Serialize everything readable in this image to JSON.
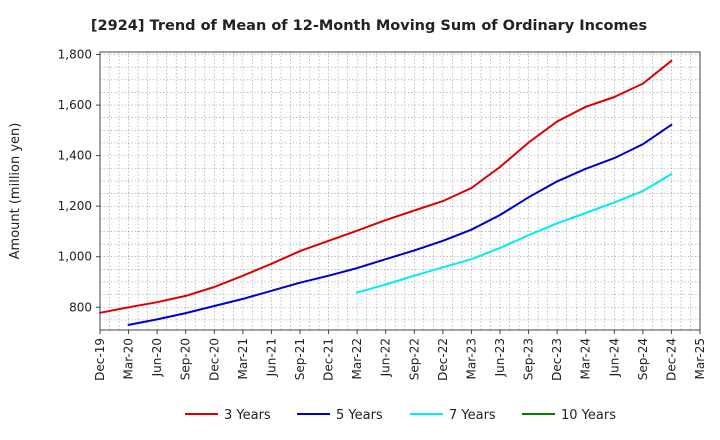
{
  "chart_data": {
    "type": "line",
    "title": "[2924]  Trend of Mean of 12-Month Moving Sum of Ordinary Incomes",
    "xlabel": "",
    "ylabel": "Amount (million yen)",
    "ylim": [
      710,
      1810
    ],
    "yticks": [
      800,
      1000,
      1200,
      1400,
      1600,
      1800
    ],
    "ytick_labels": [
      "800",
      "1,000",
      "1,200",
      "1,400",
      "1,600",
      "1,800"
    ],
    "x_categories": [
      "Dec-19",
      "Mar-20",
      "Jun-20",
      "Sep-20",
      "Dec-20",
      "Mar-21",
      "Jun-21",
      "Sep-21",
      "Dec-21",
      "Mar-22",
      "Jun-22",
      "Sep-22",
      "Dec-22",
      "Mar-23",
      "Jun-23",
      "Sep-23",
      "Dec-23",
      "Mar-24",
      "Jun-24",
      "Sep-24",
      "Dec-24",
      "Mar-25"
    ],
    "grid": true,
    "legend_position": "bottom",
    "series": [
      {
        "name": "3 Years",
        "color": "#dd0000",
        "points": [
          [
            0,
            778
          ],
          [
            1,
            800
          ],
          [
            2,
            820
          ],
          [
            3,
            845
          ],
          [
            4,
            880
          ],
          [
            5,
            925
          ],
          [
            6,
            972
          ],
          [
            7,
            1022
          ],
          [
            8,
            1063
          ],
          [
            9,
            1103
          ],
          [
            10,
            1145
          ],
          [
            11,
            1183
          ],
          [
            12,
            1220
          ],
          [
            13,
            1272
          ],
          [
            14,
            1355
          ],
          [
            15,
            1452
          ],
          [
            16,
            1535
          ],
          [
            17,
            1593
          ],
          [
            18,
            1632
          ],
          [
            19,
            1685
          ],
          [
            20,
            1775
          ]
        ]
      },
      {
        "name": "5 Years",
        "color": "#0000cc",
        "points": [
          [
            1,
            730
          ],
          [
            2,
            752
          ],
          [
            3,
            777
          ],
          [
            4,
            805
          ],
          [
            5,
            833
          ],
          [
            6,
            865
          ],
          [
            7,
            897
          ],
          [
            8,
            925
          ],
          [
            9,
            955
          ],
          [
            10,
            990
          ],
          [
            11,
            1025
          ],
          [
            12,
            1063
          ],
          [
            13,
            1107
          ],
          [
            14,
            1165
          ],
          [
            15,
            1235
          ],
          [
            16,
            1298
          ],
          [
            17,
            1348
          ],
          [
            18,
            1390
          ],
          [
            19,
            1445
          ],
          [
            20,
            1522
          ]
        ]
      },
      {
        "name": "7 Years",
        "color": "#00eeee",
        "points": [
          [
            9,
            858
          ],
          [
            10,
            890
          ],
          [
            11,
            925
          ],
          [
            12,
            958
          ],
          [
            13,
            990
          ],
          [
            14,
            1035
          ],
          [
            15,
            1085
          ],
          [
            16,
            1132
          ],
          [
            17,
            1173
          ],
          [
            18,
            1215
          ],
          [
            19,
            1260
          ],
          [
            20,
            1327
          ]
        ]
      },
      {
        "name": "10 Years",
        "color": "#008000",
        "points": []
      }
    ]
  }
}
